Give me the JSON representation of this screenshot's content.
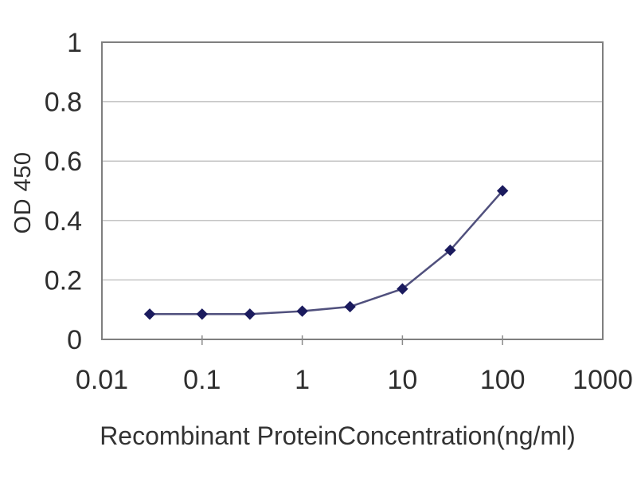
{
  "chart_data": {
    "type": "line",
    "title": "",
    "x": [
      0.03,
      0.1,
      0.3,
      1,
      3,
      10,
      30,
      100
    ],
    "y": [
      0.085,
      0.085,
      0.085,
      0.095,
      0.11,
      0.17,
      0.3,
      0.5
    ],
    "xlabel": "Recombinant ProteinConcentration(ng/ml)",
    "ylabel": "OD 450",
    "x_scale": "log",
    "xlim": [
      0.01,
      1000
    ],
    "ylim": [
      0,
      1
    ],
    "x_ticks": [
      0.01,
      0.1,
      1,
      10,
      100,
      1000
    ],
    "x_tick_labels": [
      "0.01",
      "0.1",
      "1",
      "10",
      "100",
      "1000"
    ],
    "y_ticks": [
      0,
      0.2,
      0.4,
      0.6,
      0.8,
      1
    ],
    "y_tick_labels": [
      "0",
      "0.2",
      "0.4",
      "0.6",
      "0.8",
      "1"
    ],
    "grid": "horizontal",
    "legend": "none",
    "marker": "diamond",
    "colors": {
      "line": "#50507d",
      "marker": "#1b1b5e",
      "grid": "#c4c4c4",
      "frame": "#7f7f7f",
      "tick": "#8a8a8a",
      "text": "#2e2e2e",
      "background": "#ffffff"
    }
  }
}
